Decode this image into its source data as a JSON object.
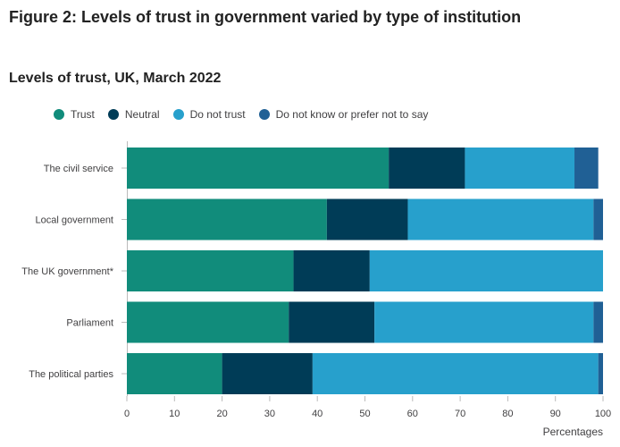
{
  "title": "Figure 2: Levels of trust in government varied by type of institution",
  "subtitle": "Levels of trust, UK, March 2022",
  "legend": [
    {
      "label": "Trust",
      "color": "#118c7b"
    },
    {
      "label": "Neutral",
      "color": "#003c57"
    },
    {
      "label": "Do not trust",
      "color": "#27a0cc"
    },
    {
      "label": "Do not know or prefer not to say",
      "color": "#206095"
    }
  ],
  "chart_data": {
    "type": "bar",
    "orientation": "horizontal",
    "stacked": true,
    "categories": [
      "The civil service",
      "Local government",
      "The UK government*",
      "Parliament",
      "The political parties"
    ],
    "series": [
      {
        "name": "Trust",
        "color": "#118c7b",
        "values": [
          55,
          42,
          35,
          34,
          20
        ]
      },
      {
        "name": "Neutral",
        "color": "#003c57",
        "values": [
          16,
          17,
          16,
          18,
          19
        ]
      },
      {
        "name": "Do not trust",
        "color": "#27a0cc",
        "values": [
          23,
          39,
          49,
          46,
          60
        ]
      },
      {
        "name": "Do not know or prefer not to say",
        "color": "#206095",
        "values": [
          5,
          2,
          0,
          2,
          1
        ]
      }
    ],
    "xlabel": "Percentages",
    "xlim": [
      0,
      100
    ],
    "xticks": [
      0,
      10,
      20,
      30,
      40,
      50,
      60,
      70,
      80,
      90,
      100
    ],
    "grid": false,
    "legend_position": "top"
  }
}
